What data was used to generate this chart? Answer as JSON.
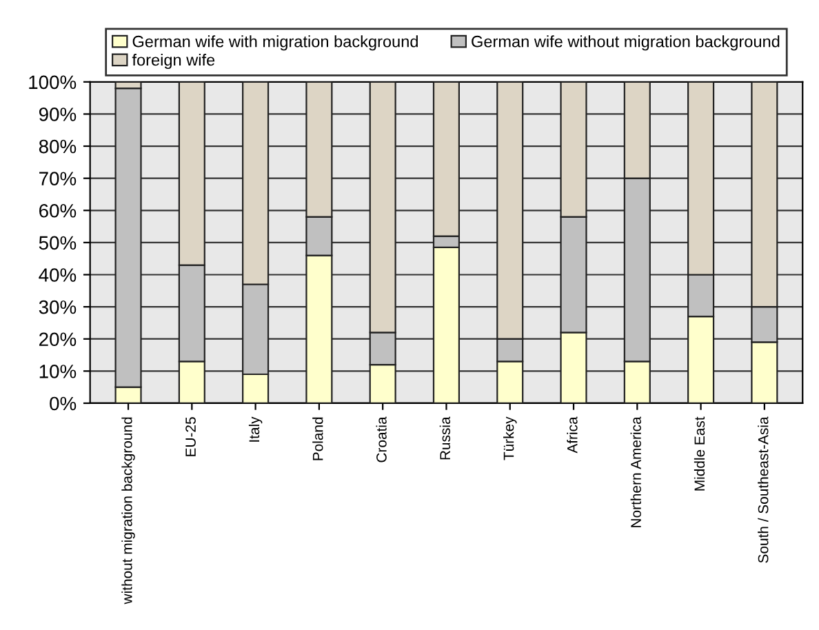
{
  "chart_data": {
    "type": "bar",
    "stacked": true,
    "categories": [
      "without migration background",
      "EU-25",
      "Italy",
      "Poland",
      "Croatia",
      "Russia",
      "Türkey",
      "Africa",
      "Northern America",
      "Middle East",
      "South / Southeast-Asia"
    ],
    "series": [
      {
        "name": "German wife with migration background",
        "color": "#ffffcc",
        "values": [
          5,
          13,
          9,
          46,
          12,
          48.5,
          13,
          22,
          13,
          27,
          19
        ]
      },
      {
        "name": "German wife without migration background",
        "color": "#c0c0c0",
        "values": [
          93,
          30,
          28,
          12,
          10,
          3.5,
          7,
          36,
          57,
          13,
          11
        ]
      },
      {
        "name": "foreign wife",
        "color": "#ddd5c5",
        "values": [
          2,
          57,
          63,
          42,
          78,
          48,
          80,
          42,
          30,
          60,
          70
        ]
      }
    ],
    "ylim": [
      0,
      100
    ],
    "yticks": [
      {
        "value": 0,
        "label": "0%"
      },
      {
        "value": 10,
        "label": "10%"
      },
      {
        "value": 20,
        "label": "20%"
      },
      {
        "value": 30,
        "label": "30%"
      },
      {
        "value": 40,
        "label": "40%"
      },
      {
        "value": 50,
        "label": "50%"
      },
      {
        "value": 60,
        "label": "60%"
      },
      {
        "value": 70,
        "label": "70%"
      },
      {
        "value": 80,
        "label": "80%"
      },
      {
        "value": 90,
        "label": "90%"
      },
      {
        "value": 100,
        "label": "100%"
      }
    ],
    "grid": "y",
    "legend": "top"
  }
}
